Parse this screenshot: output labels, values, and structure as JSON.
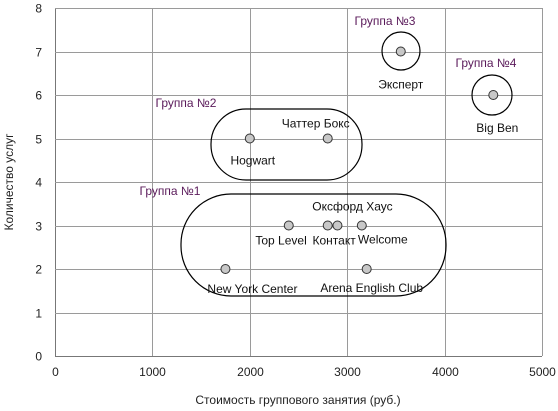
{
  "chart_data": {
    "type": "scatter",
    "xlabel": "Стоимость группового занятия (руб.)",
    "ylabel": "Количество услуг",
    "xlim": [
      0,
      5000
    ],
    "ylim": [
      0,
      8
    ],
    "x_ticks": [
      0,
      1000,
      2000,
      3000,
      4000,
      5000
    ],
    "y_ticks": [
      0,
      1,
      2,
      3,
      4,
      5,
      6,
      7,
      8
    ],
    "grid": true,
    "legend": "none",
    "points": [
      {
        "label": "Hogwart",
        "x": 2000,
        "y": 5
      },
      {
        "label": "Чаттер Бокс",
        "x": 2800,
        "y": 5
      },
      {
        "label": "Top Level",
        "x": 2400,
        "y": 3
      },
      {
        "label": "Контакт",
        "x": 2800,
        "y": 3
      },
      {
        "label": "Оксфорд Хаус",
        "x": 2900,
        "y": 3
      },
      {
        "label": "Welcome",
        "x": 3150,
        "y": 3
      },
      {
        "label": "New York Center",
        "x": 1750,
        "y": 2
      },
      {
        "label": "Arena English Club",
        "x": 3200,
        "y": 2
      },
      {
        "label": "Эксперт",
        "x": 3550,
        "y": 7
      },
      {
        "label": "Big Ben",
        "x": 4500,
        "y": 6
      }
    ],
    "groups": [
      {
        "label": "Группа №1"
      },
      {
        "label": "Группа №2"
      },
      {
        "label": "Группа №3"
      },
      {
        "label": "Группа №4"
      }
    ]
  }
}
